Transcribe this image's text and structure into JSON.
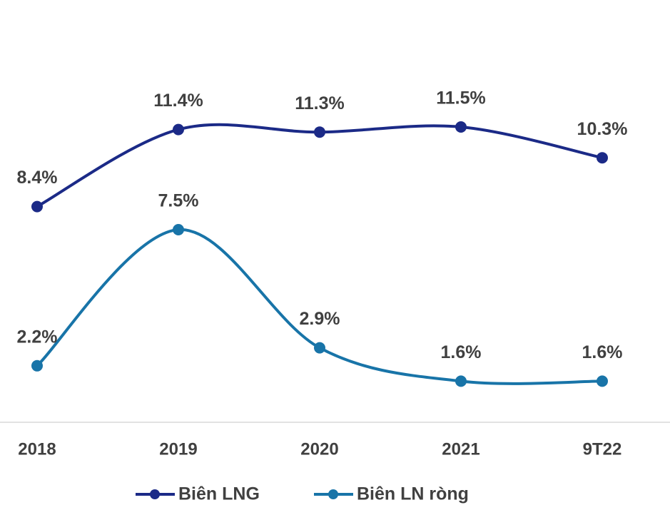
{
  "chart_data": {
    "type": "line",
    "categories": [
      "2018",
      "2019",
      "2020",
      "2021",
      "9T22"
    ],
    "series": [
      {
        "name": "Biên LNG",
        "color": "#1b2a87",
        "values": [
          8.4,
          11.4,
          11.3,
          11.5,
          10.3
        ],
        "value_labels": [
          "8.4%",
          "11.4%",
          "11.3%",
          "11.5%",
          "10.3%"
        ]
      },
      {
        "name": "Biên LN ròng",
        "color": "#1874a8",
        "values": [
          2.2,
          7.5,
          2.9,
          1.6,
          1.6
        ],
        "value_labels": [
          "2.2%",
          "7.5%",
          "2.9%",
          "1.6%",
          "1.6%"
        ]
      }
    ]
  }
}
